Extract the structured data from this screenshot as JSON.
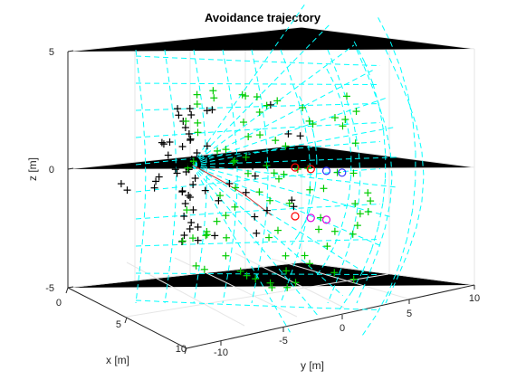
{
  "chart_data": {
    "type": "scatter",
    "title": "Avoidance trajectory",
    "xlabel": "x [m]",
    "ylabel": "y [m]",
    "zlabel": "z [m]",
    "xlim": [
      0,
      10
    ],
    "ylim": [
      -10,
      10
    ],
    "zlim": [
      -5,
      5
    ],
    "xticks": [
      "0",
      "5",
      "10"
    ],
    "yticks": [
      "-10",
      "-5",
      "0",
      "5",
      "10"
    ],
    "zticks": [
      "5",
      "0",
      "-5"
    ],
    "grid": true,
    "colors": {
      "mesh": "#00ffff",
      "green_markers": "#00cc00",
      "black_markers": "#000000",
      "red_circles": "#ff0000",
      "blue_circles": "#3333ff",
      "magenta_circles": "#dd00dd",
      "trajectory": "#cc3333"
    },
    "circles": [
      {
        "x": 5,
        "y": 0.5,
        "z": 0,
        "color": "red"
      },
      {
        "x": 5,
        "y": 2,
        "z": 0,
        "color": "red"
      },
      {
        "x": 5,
        "y": 3.5,
        "z": 0,
        "color": "blue"
      },
      {
        "x": 5,
        "y": 5,
        "z": 0,
        "color": "blue"
      },
      {
        "x": 5,
        "y": 0.5,
        "z": -1.5,
        "color": "red"
      },
      {
        "x": 5,
        "y": 2,
        "z": -1.5,
        "color": "magenta"
      },
      {
        "x": 5,
        "y": 3.5,
        "z": -1.5,
        "color": "magenta"
      }
    ]
  }
}
